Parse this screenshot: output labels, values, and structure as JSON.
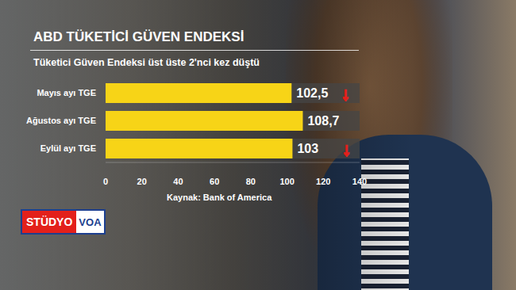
{
  "chart_data": {
    "type": "bar",
    "orientation": "horizontal",
    "title": "ABD TÜKETİCİ GÜVEN ENDEKSİ",
    "subtitle": "Tüketici Güven Endeksi üst üste 2'nci kez düştü",
    "categories": [
      "Mayıs ayı TGE",
      "Ağustos ayı TGE",
      "Eylül ayı TGE"
    ],
    "values": [
      102.5,
      108.7,
      103
    ],
    "value_labels": [
      "102,5",
      "108,7",
      "103"
    ],
    "data_labels": true,
    "annotations": [
      "↓",
      null,
      "↓"
    ],
    "color": "#f7d417",
    "xlim": [
      0,
      140
    ],
    "xticks": [
      0,
      20,
      40,
      60,
      80,
      100,
      120,
      140
    ],
    "grid": false,
    "source": "Kaynak: Bank of America",
    "logo": [
      "STÜDYO",
      "VOA"
    ]
  }
}
